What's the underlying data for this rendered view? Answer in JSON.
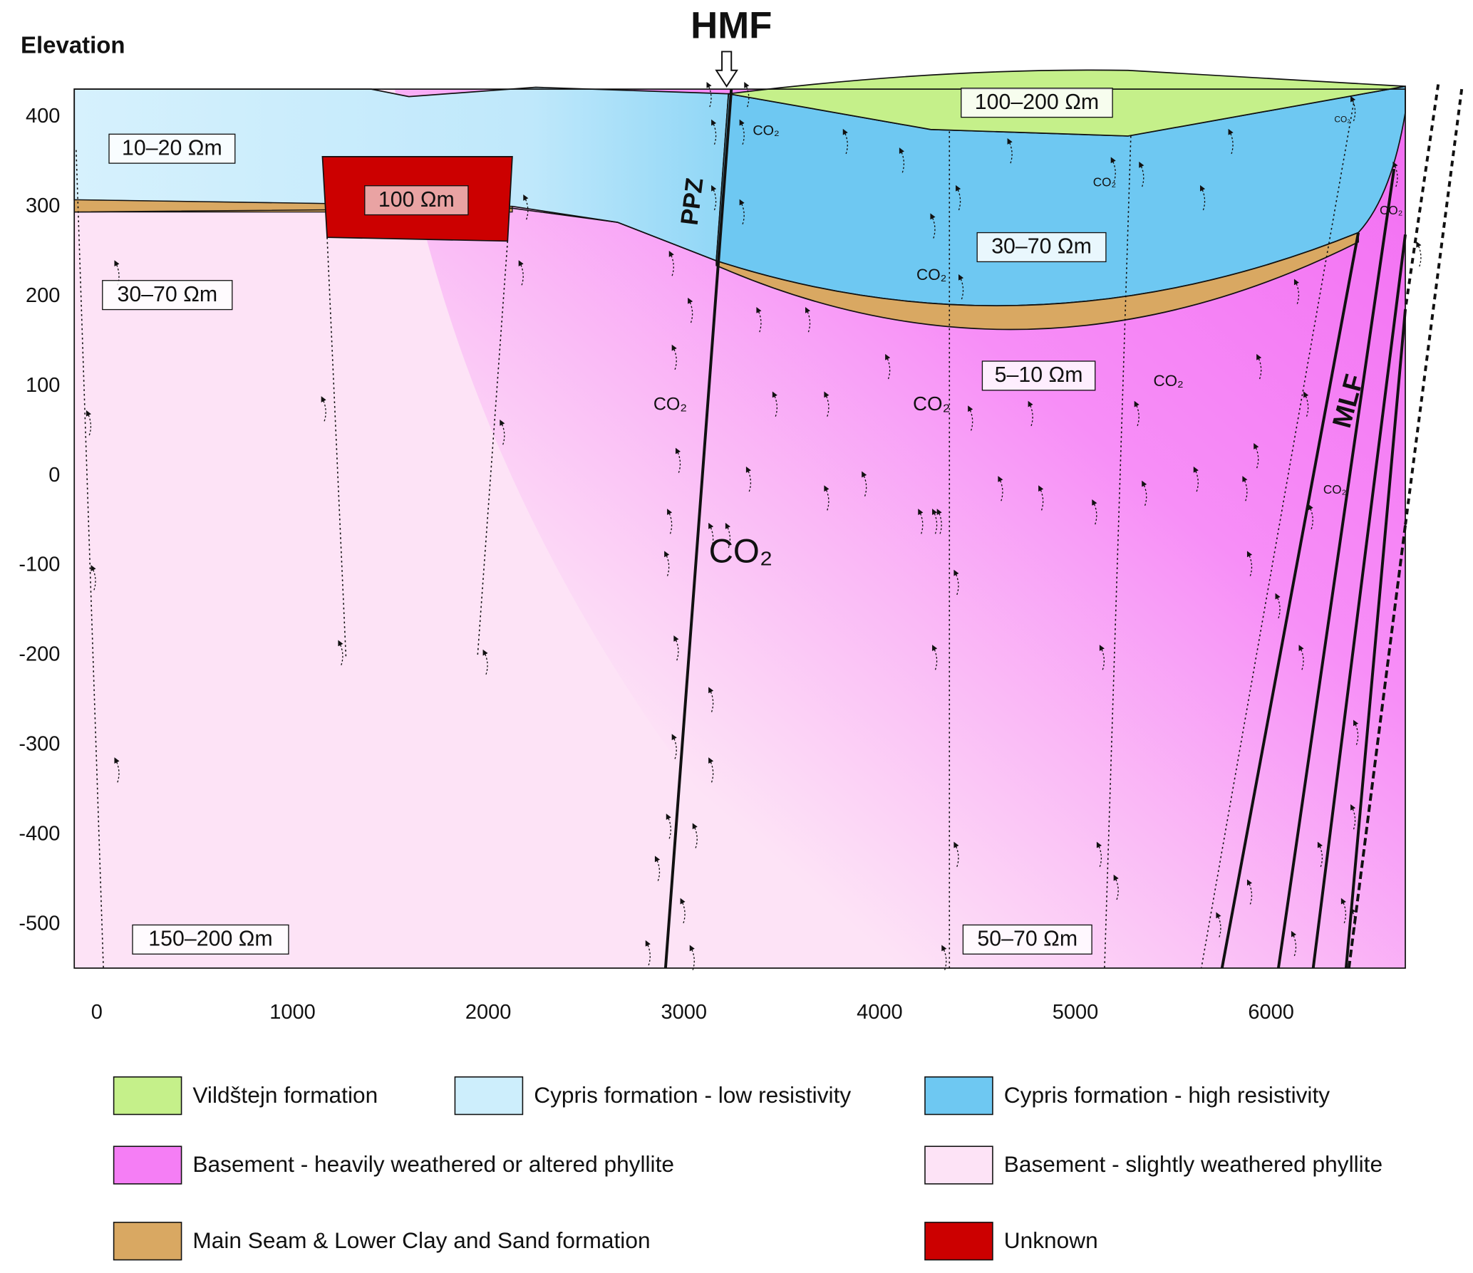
{
  "header": {
    "title": "Elevation"
  },
  "axes": {
    "y_ticks": [
      400,
      300,
      200,
      100,
      0,
      -100,
      -200,
      -300,
      -400,
      -500
    ],
    "x_ticks": [
      0,
      1000,
      2000,
      3000,
      4000,
      5000,
      6000
    ]
  },
  "faults": [
    {
      "label": "HMF"
    },
    {
      "label": "PPZ"
    },
    {
      "label": "MLF"
    }
  ],
  "resistivity_labels": [
    "10–20 Ωm",
    "100 Ωm",
    "30–70 Ωm",
    "150–200 Ωm",
    "100–200 Ωm",
    "30–70 Ωm",
    "5–10 Ωm",
    "50–70 Ωm"
  ],
  "gas_labels": [
    "CO₂",
    "CO₂",
    "CO₂",
    "CO₂",
    "CO₂",
    "CO₂",
    "CO₂",
    "CO₂",
    "CO₂",
    "CO₂"
  ],
  "legend": [
    {
      "label": "Vildštejn formation",
      "color": "#c5f08a"
    },
    {
      "label": "Cypris formation - low resistivity",
      "color": "#cdeefc"
    },
    {
      "label": "Cypris formation - high resistivity",
      "color": "#6ec8f2"
    },
    {
      "label": "Basement - heavily weathered or altered phyllite",
      "color": "#f57ef5"
    },
    {
      "label": "Basement - slightly weathered phyllite",
      "color": "#fde3f6"
    },
    {
      "label": "Main Seam & Lower Clay and Sand formation",
      "color": "#d9a862"
    },
    {
      "label": "Unknown",
      "color": "#cc0000"
    }
  ]
}
